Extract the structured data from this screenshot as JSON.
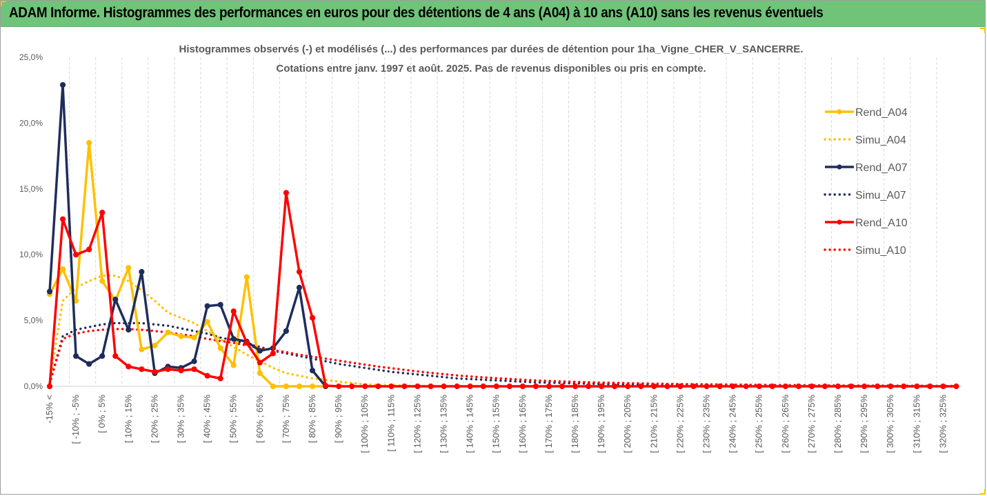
{
  "header": {
    "title": "ADAM Informe. Histogrammes des performances en euros pour des détentions de 4 ans (A04) à 10 ans (A10) sans les revenus éventuels"
  },
  "chart_data": {
    "type": "line",
    "title_line1": "Histogrammes observés (-) et modélisés (...) des performances par durées de détention pour 1ha_Vigne_CHER_V_SANCERRE.",
    "title_line2": "Cotations entre janv. 1997 et août. 2025. Pas de revenus disponibles ou pris en compte.",
    "y_tick_labels": [
      "0,0%",
      "5,0%",
      "10,0%",
      "15,0%",
      "20,0%",
      "25,0%"
    ],
    "y_ticks": [
      0,
      5,
      10,
      15,
      20,
      25
    ],
    "ylim": [
      0,
      25
    ],
    "x_tick_labels": [
      "-15% <",
      "[ -10% ; -5%",
      "[ 0% ; 5%",
      "[ 10% ; 15%",
      "[ 20% ; 25%",
      "[ 30% ; 35%",
      "[ 40% ; 45%",
      "[ 50% ; 55%",
      "[ 60% ; 65%",
      "[ 70% ; 75%",
      "[ 80% ; 85%",
      "[ 90% ; 95%",
      "[ 100% ; 105%",
      "[ 110% ; 115%",
      "[ 120% ; 125%",
      "[ 130% ; 135%",
      "[ 140% ; 145%",
      "[ 150% ; 155%",
      "[ 160% ; 165%",
      "[ 170% ; 175%",
      "[ 180% ; 185%",
      "[ 190% ; 195%",
      "[ 200% ; 205%",
      "[ 210% ; 215%",
      "[ 220% ; 225%",
      "[ 230% ; 235%",
      "[ 240% ; 245%",
      "[ 250% ; 255%",
      "[ 260% ; 265%",
      "[ 270% ; 275%",
      "[ 280% ; 285%",
      "[ 290% ; 295%",
      "[ 300% ; 305%",
      "[ 310% ; 315%",
      "[ 320% ; 325%"
    ],
    "n_categories": 70,
    "label_every": 2,
    "grid": "vertical dashed",
    "legend_position": "right",
    "series": [
      {
        "name": "Rend_A04",
        "color": "#ffc000",
        "style": "solid",
        "markers": true,
        "values": [
          7.0,
          8.9,
          6.5,
          18.5,
          8.0,
          6.5,
          9.0,
          2.8,
          3.1,
          4.1,
          3.8,
          3.7,
          4.9,
          2.9,
          1.6,
          8.3,
          1.0,
          0.0,
          0.0,
          0.0,
          0.0,
          0.0
        ]
      },
      {
        "name": "Simu_A04",
        "color": "#ffc000",
        "style": "dotted",
        "markers": false,
        "values": [
          0.3,
          6.5,
          7.5,
          8.0,
          8.4,
          8.4,
          8.0,
          7.3,
          6.5,
          5.6,
          5.2,
          4.8,
          4.2,
          3.6,
          3.0,
          2.4,
          1.9,
          1.4,
          1.0,
          0.8,
          0.6,
          0.5,
          0.35,
          0.25,
          0.15,
          0.1,
          0.08,
          0.05,
          0.03,
          0.02,
          0.01
        ]
      },
      {
        "name": "Rend_A07",
        "color": "#1f2d5c",
        "style": "solid",
        "markers": true,
        "values": [
          7.2,
          22.9,
          2.3,
          1.7,
          2.3,
          6.6,
          4.3,
          8.7,
          1.0,
          1.5,
          1.4,
          1.9,
          6.1,
          6.2,
          3.6,
          3.4,
          2.7,
          2.9,
          4.2,
          7.5,
          1.2,
          0.0
        ]
      },
      {
        "name": "Simu_A07",
        "color": "#1f2d5c",
        "style": "dotted",
        "markers": false,
        "values": [
          0.2,
          3.8,
          4.3,
          4.5,
          4.7,
          4.8,
          4.8,
          4.8,
          4.7,
          4.6,
          4.4,
          4.2,
          4.0,
          3.7,
          3.5,
          3.2,
          3.0,
          2.7,
          2.5,
          2.3,
          2.1,
          1.9,
          1.7,
          1.55,
          1.4,
          1.25,
          1.1,
          1.0,
          0.9,
          0.8,
          0.7,
          0.6,
          0.55,
          0.5,
          0.45,
          0.4,
          0.35,
          0.3,
          0.28,
          0.25,
          0.23,
          0.2,
          0.18,
          0.16,
          0.14,
          0.12,
          0.11,
          0.1,
          0.09,
          0.08,
          0.07,
          0.06,
          0.05,
          0.05,
          0.04,
          0.04,
          0.03,
          0.03,
          0.02,
          0.02,
          0.02,
          0.01,
          0.01,
          0.01,
          0.01,
          0.0,
          0.0,
          0.0,
          0.0,
          0.0
        ]
      },
      {
        "name": "Rend_A10",
        "color": "#ff0000",
        "style": "solid",
        "markers": true,
        "values": [
          0.0,
          12.7,
          10.0,
          10.4,
          13.2,
          2.3,
          1.5,
          1.3,
          1.1,
          1.3,
          1.2,
          1.3,
          0.8,
          0.6,
          5.7,
          3.3,
          1.8,
          2.5,
          14.7,
          8.7,
          5.2,
          0.05,
          0.0,
          0.0,
          0.0,
          0.0,
          0.0,
          0.0,
          0.0,
          0.0,
          0.0,
          0.0,
          0.0,
          0.0,
          0.0,
          0.0,
          0.0,
          0.0,
          0.0,
          0.0,
          0.0,
          0.0,
          0.0,
          0.0,
          0.0,
          0.0,
          0.0,
          0.0,
          0.0,
          0.0,
          0.0,
          0.0,
          0.0,
          0.0,
          0.0,
          0.0,
          0.0,
          0.0,
          0.0,
          0.0,
          0.0,
          0.0,
          0.0,
          0.0,
          0.0,
          0.0,
          0.0,
          0.0,
          0.0,
          0.0
        ]
      },
      {
        "name": "Simu_A10",
        "color": "#ff0000",
        "style": "dotted",
        "markers": false,
        "values": [
          0.2,
          3.6,
          4.0,
          4.2,
          4.3,
          4.35,
          4.35,
          4.3,
          4.2,
          4.1,
          3.95,
          3.8,
          3.6,
          3.45,
          3.3,
          3.1,
          2.9,
          2.75,
          2.6,
          2.4,
          2.25,
          2.1,
          1.95,
          1.8,
          1.65,
          1.5,
          1.38,
          1.25,
          1.13,
          1.02,
          0.92,
          0.83,
          0.75,
          0.68,
          0.62,
          0.56,
          0.5,
          0.45,
          0.41,
          0.37,
          0.34,
          0.31,
          0.28,
          0.26,
          0.24,
          0.22,
          0.2,
          0.19,
          0.17,
          0.16,
          0.15,
          0.14,
          0.13,
          0.12,
          0.11,
          0.1,
          0.09,
          0.09,
          0.08,
          0.07,
          0.07,
          0.06,
          0.06,
          0.05,
          0.05,
          0.04,
          0.04,
          0.04,
          0.03,
          0.03
        ]
      }
    ]
  }
}
